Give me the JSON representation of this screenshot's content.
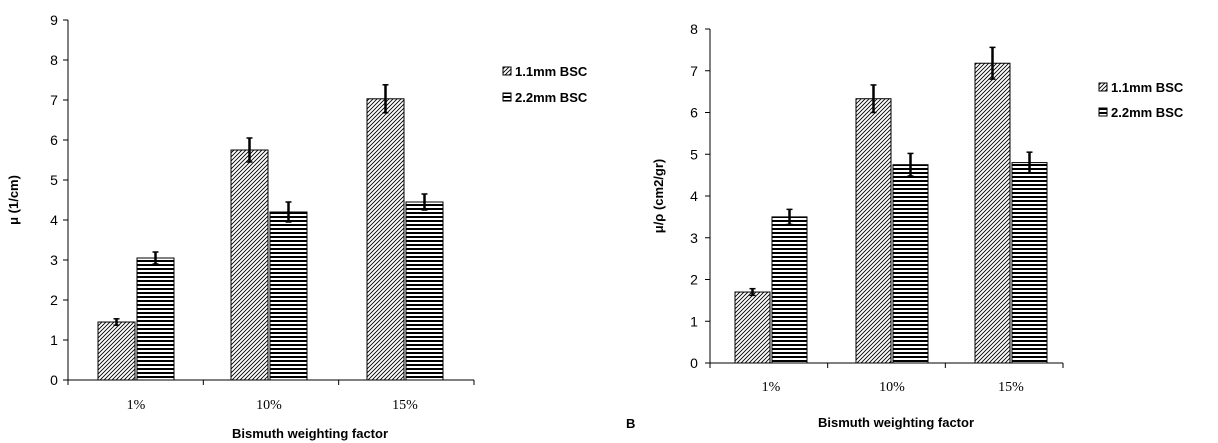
{
  "panel_b_letter": "B",
  "chart_data": [
    {
      "type": "bar",
      "title": "",
      "xlabel": "Bismuth weighting factor",
      "ylabel": "μ (1/cm)",
      "categories": [
        "1%",
        "10%",
        "15%"
      ],
      "ylim": [
        0,
        9
      ],
      "yticks": [
        0,
        1,
        2,
        3,
        4,
        5,
        6,
        7,
        8,
        9
      ],
      "legend_position": "right",
      "grid": false,
      "series": [
        {
          "name": "1.1mm BSC",
          "pattern": "diagonal-hatch",
          "values": [
            1.45,
            5.75,
            7.03
          ],
          "errors": [
            0.08,
            0.3,
            0.35
          ]
        },
        {
          "name": "2.2mm BSC",
          "pattern": "horizontal-lines",
          "values": [
            3.05,
            4.2,
            4.45
          ],
          "errors": [
            0.15,
            0.25,
            0.2
          ]
        }
      ]
    },
    {
      "type": "bar",
      "title": "",
      "xlabel": "Bismuth weighting factor",
      "ylabel": "μ/ρ (cm2/gr)",
      "categories": [
        "1%",
        "10%",
        "15%"
      ],
      "ylim": [
        0,
        8
      ],
      "yticks": [
        0,
        1,
        2,
        3,
        4,
        5,
        6,
        7,
        8
      ],
      "legend_position": "right",
      "grid": false,
      "series": [
        {
          "name": "1.1mm BSC",
          "pattern": "diagonal-hatch",
          "values": [
            1.7,
            6.33,
            7.18
          ],
          "errors": [
            0.08,
            0.33,
            0.38
          ]
        },
        {
          "name": "2.2mm BSC",
          "pattern": "horizontal-lines",
          "values": [
            3.5,
            4.75,
            4.8
          ],
          "errors": [
            0.18,
            0.27,
            0.25
          ]
        }
      ]
    }
  ]
}
